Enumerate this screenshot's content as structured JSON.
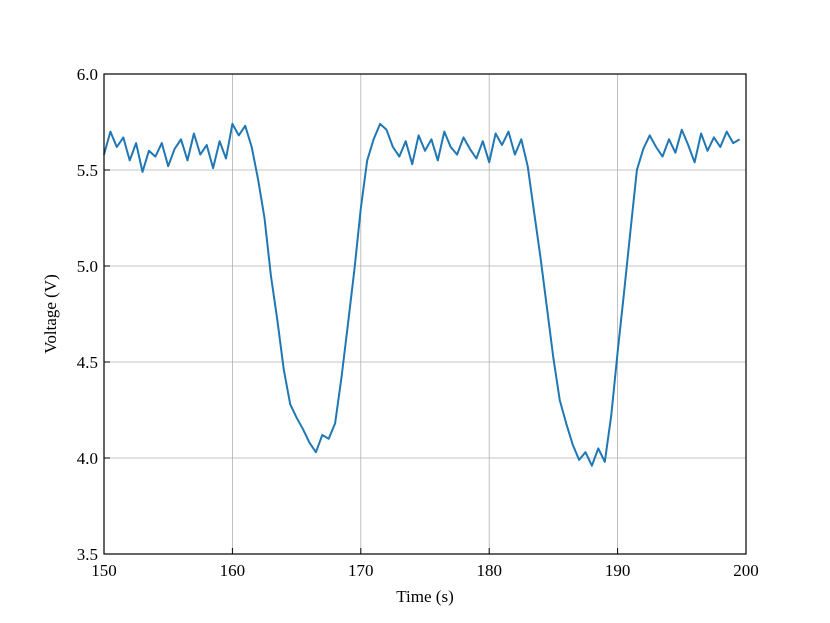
{
  "chart_data": {
    "type": "line",
    "title": "",
    "xlabel": "Time (s)",
    "ylabel": "Voltage (V)",
    "xlim": [
      150,
      200
    ],
    "ylim": [
      3.5,
      6.0
    ],
    "xticks": [
      "150",
      "160",
      "170",
      "180",
      "190",
      "200"
    ],
    "yticks": [
      "3.5",
      "4.0",
      "4.5",
      "5.0",
      "5.5",
      "6.0"
    ],
    "grid": true,
    "legend": "none",
    "series": [
      {
        "color": "#1f77b4",
        "x": [
          150.0,
          150.5,
          151.0,
          151.5,
          152.0,
          152.5,
          153.0,
          153.5,
          154.0,
          154.5,
          155.0,
          155.5,
          156.0,
          156.5,
          157.0,
          157.5,
          158.0,
          158.5,
          159.0,
          159.5,
          160.0,
          160.5,
          161.0,
          161.5,
          162.0,
          162.5,
          163.0,
          163.5,
          164.0,
          164.5,
          165.0,
          165.5,
          166.0,
          166.5,
          167.0,
          167.5,
          168.0,
          168.5,
          169.0,
          169.5,
          170.0,
          170.5,
          171.0,
          171.5,
          172.0,
          172.5,
          173.0,
          173.5,
          174.0,
          174.5,
          175.0,
          175.5,
          176.0,
          176.5,
          177.0,
          177.5,
          178.0,
          178.5,
          179.0,
          179.5,
          180.0,
          180.5,
          181.0,
          181.5,
          182.0,
          182.5,
          183.0,
          183.5,
          184.0,
          184.5,
          185.0,
          185.5,
          186.0,
          186.5,
          187.0,
          187.5,
          188.0,
          188.5,
          189.0,
          189.5,
          190.0,
          190.5,
          191.0,
          191.5,
          192.0,
          192.5,
          193.0,
          193.5,
          194.0,
          194.5,
          195.0,
          195.5,
          196.0,
          196.5,
          197.0,
          197.5,
          198.0,
          198.5,
          199.0,
          199.5
        ],
        "y": [
          5.58,
          5.7,
          5.62,
          5.67,
          5.55,
          5.64,
          5.49,
          5.6,
          5.57,
          5.64,
          5.52,
          5.61,
          5.66,
          5.55,
          5.69,
          5.58,
          5.63,
          5.51,
          5.65,
          5.56,
          5.74,
          5.68,
          5.73,
          5.62,
          5.45,
          5.25,
          4.95,
          4.72,
          4.46,
          4.28,
          4.21,
          4.15,
          4.08,
          4.03,
          4.12,
          4.1,
          4.18,
          4.42,
          4.7,
          4.98,
          5.3,
          5.55,
          5.66,
          5.74,
          5.71,
          5.62,
          5.57,
          5.65,
          5.53,
          5.68,
          5.6,
          5.66,
          5.55,
          5.7,
          5.62,
          5.58,
          5.67,
          5.61,
          5.56,
          5.65,
          5.54,
          5.69,
          5.63,
          5.7,
          5.58,
          5.66,
          5.52,
          5.28,
          5.04,
          4.78,
          4.52,
          4.3,
          4.18,
          4.07,
          3.99,
          4.03,
          3.96,
          4.05,
          3.98,
          4.22,
          4.55,
          4.86,
          5.18,
          5.5,
          5.61,
          5.68,
          5.62,
          5.57,
          5.66,
          5.59,
          5.71,
          5.63,
          5.54,
          5.69,
          5.6,
          5.67,
          5.62,
          5.7,
          5.64,
          5.66
        ]
      }
    ]
  }
}
